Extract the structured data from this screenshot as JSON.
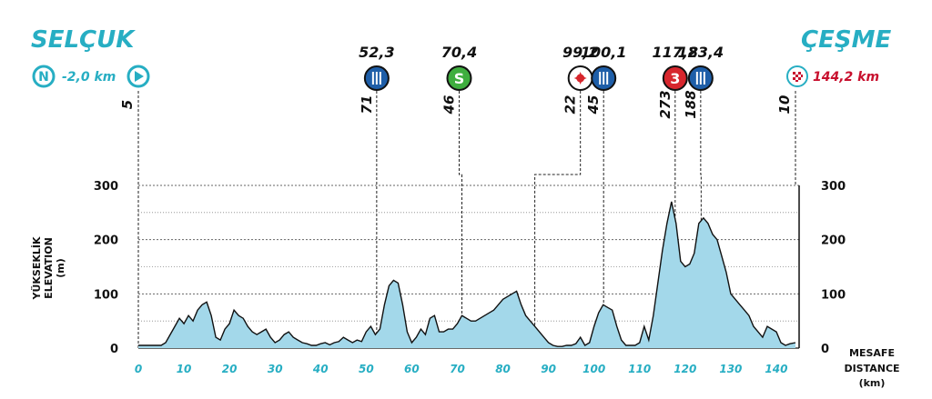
{
  "start": {
    "city": "SELÇUK",
    "marker": "N",
    "km_label": "-2,0 km"
  },
  "finish": {
    "city": "ÇEŞME",
    "km_label": "144,2 km"
  },
  "axes": {
    "ylabel_tr": "YÜKSEKLİK",
    "ylabel_en": "ELEVATION",
    "ylabel_unit": "(m)",
    "xlabel_tr": "MESAFE",
    "xlabel_en": "DISTANCE",
    "xlabel_unit": "(km)"
  },
  "colors": {
    "accent": "#27aec3",
    "profile_fill": "#a3d8ea",
    "finish": "#c8102e",
    "sprint": "#3fae3f",
    "feed": "#1e5ea8",
    "kom": "#d7262d"
  },
  "chart_data": {
    "type": "area",
    "xlim": [
      0,
      145
    ],
    "ylim": [
      0,
      300
    ],
    "x_ticks": [
      0,
      10,
      20,
      30,
      40,
      50,
      60,
      70,
      80,
      90,
      100,
      110,
      120,
      130,
      140
    ],
    "x_tick_labels": [
      "0",
      "10",
      "20",
      "30",
      "40",
      "50",
      "60",
      "70",
      "80",
      "90",
      "100",
      "110",
      "120",
      "130",
      "140"
    ],
    "y_ticks": [
      0,
      100,
      200,
      300
    ],
    "y_tick_labels": [
      "0",
      "100",
      "200",
      "300"
    ],
    "y_minor_gridlines": [
      50,
      150,
      250
    ],
    "grid": true,
    "x": [
      0,
      5,
      6,
      7,
      8,
      9,
      10,
      11,
      12,
      13,
      14,
      15,
      16,
      17,
      18,
      19,
      20,
      21,
      22,
      23,
      24,
      25,
      26,
      27,
      28,
      29,
      30,
      31,
      32,
      33,
      34,
      35,
      36,
      37,
      38,
      39,
      40,
      41,
      42,
      43,
      44,
      45,
      46,
      47,
      48,
      49,
      50,
      51,
      52,
      53,
      54,
      55,
      56,
      57,
      58,
      59,
      60,
      61,
      62,
      63,
      64,
      65,
      66,
      67,
      68,
      69,
      70,
      71,
      72,
      73,
      74,
      75,
      76,
      77,
      78,
      79,
      80,
      81,
      82,
      83,
      84,
      85,
      86,
      87,
      88,
      89,
      90,
      91,
      92,
      93,
      94,
      95,
      96,
      97,
      98,
      99,
      100,
      101,
      102,
      103,
      104,
      105,
      106,
      107,
      108,
      109,
      110,
      111,
      112,
      113,
      114,
      115,
      116,
      117,
      118,
      119,
      120,
      121,
      122,
      123,
      124,
      125,
      126,
      127,
      128,
      129,
      130,
      131,
      132,
      133,
      134,
      135,
      136,
      137,
      138,
      139,
      140,
      141,
      142,
      143,
      144.2
    ],
    "y": [
      5,
      5,
      10,
      25,
      40,
      55,
      45,
      60,
      50,
      70,
      80,
      85,
      60,
      20,
      15,
      35,
      45,
      70,
      60,
      55,
      40,
      30,
      25,
      30,
      35,
      20,
      10,
      15,
      25,
      30,
      20,
      15,
      10,
      8,
      5,
      5,
      8,
      10,
      6,
      10,
      12,
      20,
      15,
      10,
      15,
      12,
      30,
      40,
      25,
      35,
      80,
      115,
      125,
      120,
      80,
      30,
      10,
      20,
      35,
      25,
      55,
      60,
      30,
      30,
      35,
      35,
      45,
      60,
      55,
      50,
      50,
      55,
      60,
      65,
      70,
      80,
      90,
      95,
      100,
      105,
      80,
      60,
      50,
      40,
      30,
      20,
      10,
      5,
      3,
      3,
      5,
      5,
      8,
      20,
      5,
      10,
      40,
      65,
      80,
      75,
      70,
      40,
      15,
      5,
      5,
      5,
      10,
      40,
      15,
      60,
      120,
      180,
      230,
      270,
      230,
      160,
      150,
      155,
      175,
      230,
      240,
      230,
      210,
      200,
      170,
      140,
      100,
      90,
      80,
      70,
      60,
      40,
      30,
      20,
      40,
      35,
      30,
      10,
      5,
      8,
      10
    ],
    "annotations": {
      "poi_km": [
        "52,3",
        "70,4",
        "99,2",
        "100,1",
        "117,8",
        "123,4"
      ],
      "poi_type": [
        "feed",
        "sprint",
        "kom-red",
        "feed",
        "kom-3",
        "feed"
      ],
      "poi_icon_text": [
        "",
        "S",
        "",
        "",
        "3",
        ""
      ],
      "poi_elevation": [
        "71",
        "46",
        "22",
        "45",
        "273",
        "188"
      ],
      "start_elevation": "5",
      "finish_elevation": "10"
    }
  }
}
